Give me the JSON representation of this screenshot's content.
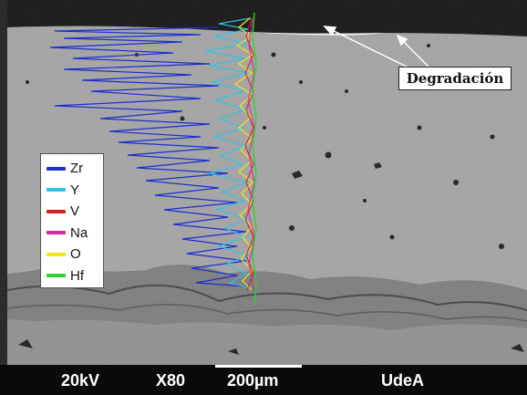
{
  "annotation": {
    "label": "Degradación"
  },
  "legend": {
    "items": [
      {
        "label": "Zr",
        "color": "#1a2fd0"
      },
      {
        "label": "Y",
        "color": "#2ec4e6"
      },
      {
        "label": "V",
        "color": "#d61f1f"
      },
      {
        "label": "Na",
        "color": "#d12a9a"
      },
      {
        "label": "O",
        "color": "#f4e21a"
      },
      {
        "label": "Hf",
        "color": "#2ad42a"
      }
    ]
  },
  "footer": {
    "voltage": "20kV",
    "magnification": "X80",
    "scale_label": "200µm",
    "lab": "UdeA"
  }
}
